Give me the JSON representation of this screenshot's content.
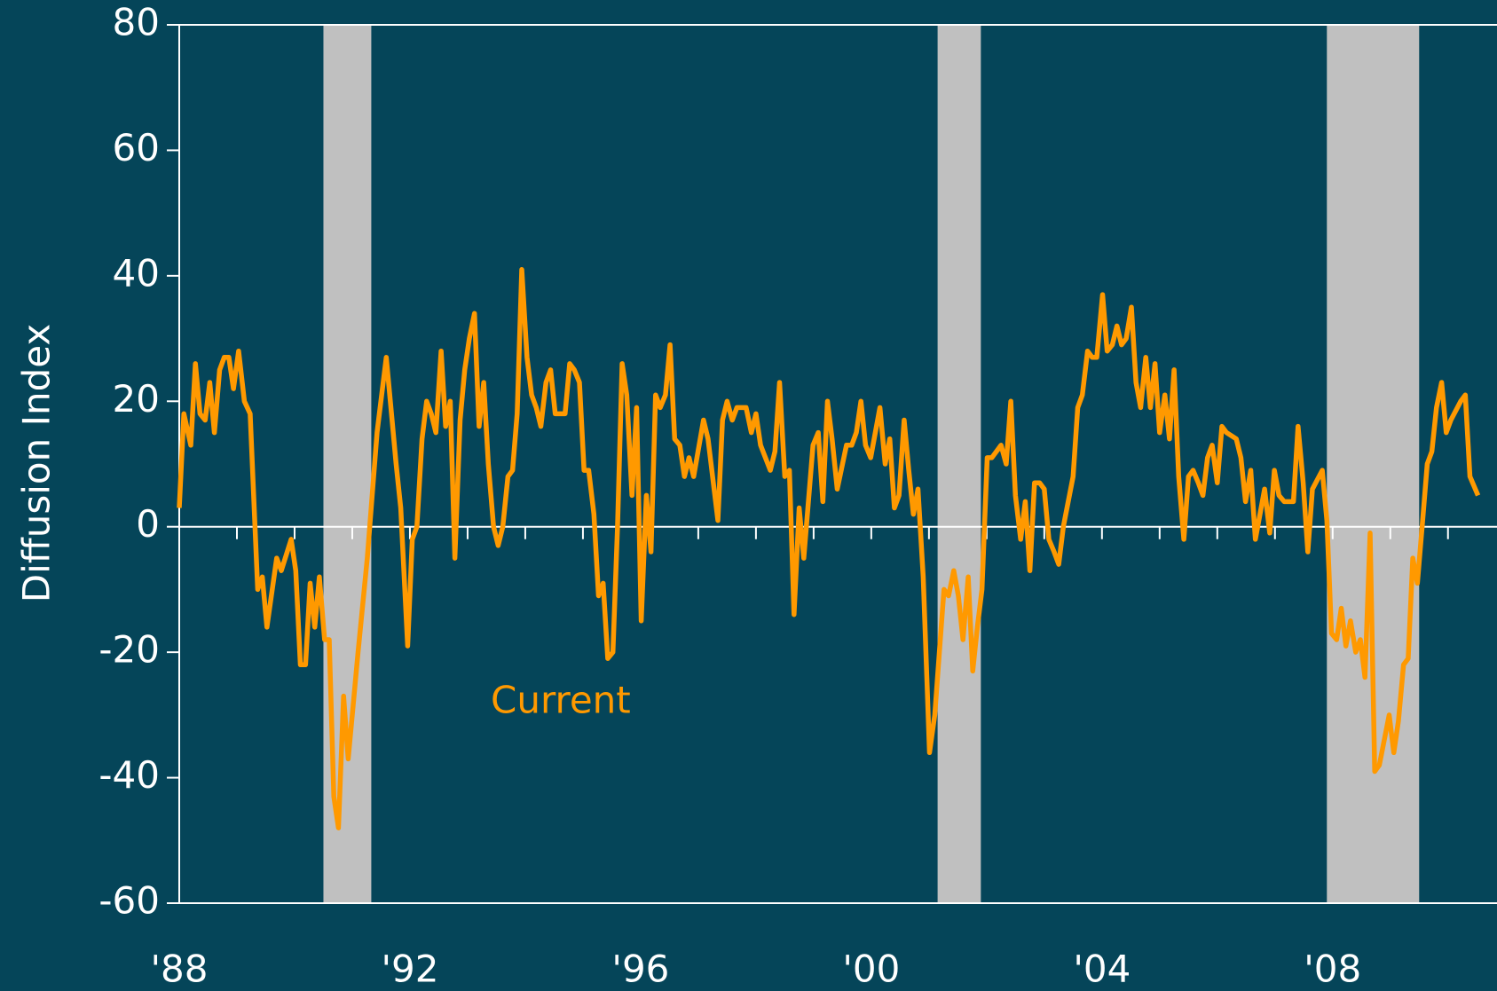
{
  "chart_data": {
    "type": "line",
    "y_label": "Diffusion Index",
    "annotation": "Current",
    "xlim": [
      1988,
      2010.85
    ],
    "ylim": [
      -60,
      80
    ],
    "yticks": [
      -60,
      -40,
      -20,
      0,
      20,
      40,
      60,
      80
    ],
    "xticks": [
      {
        "value": 1988,
        "label": "'88"
      },
      {
        "value": 1992,
        "label": "'92"
      },
      {
        "value": 1996,
        "label": "'96"
      },
      {
        "value": 2000,
        "label": "'00"
      },
      {
        "value": 2004,
        "label": "'04"
      },
      {
        "value": 2008,
        "label": "'08"
      }
    ],
    "xminorticks": [
      1989,
      1990,
      1991,
      1993,
      1994,
      1995,
      1997,
      1998,
      1999,
      2001,
      2002,
      2003,
      2005,
      2006,
      2007,
      2009,
      2010
    ],
    "shaded": [
      [
        1990.5,
        1991.33
      ],
      [
        2001.15,
        2001.9
      ],
      [
        2007.9,
        2009.5
      ]
    ],
    "shade_color": "#c0c0c0",
    "series": [
      {
        "name": "Current",
        "color": "#ff9900",
        "x": [
          1988.0,
          1988.08,
          1988.2,
          1988.28,
          1988.36,
          1988.45,
          1988.53,
          1988.61,
          1988.7,
          1988.78,
          1988.86,
          1988.94,
          1989.03,
          1989.13,
          1989.23,
          1989.36,
          1989.44,
          1989.52,
          1989.69,
          1989.77,
          1989.94,
          1990.02,
          1990.1,
          1990.19,
          1990.27,
          1990.35,
          1990.43,
          1990.52,
          1990.6,
          1990.68,
          1990.76,
          1990.85,
          1990.93,
          1991.1,
          1991.26,
          1991.43,
          1991.59,
          1991.76,
          1991.84,
          1991.96,
          1992.04,
          1992.12,
          1992.21,
          1992.29,
          1992.37,
          1992.45,
          1992.54,
          1992.62,
          1992.7,
          1992.78,
          1992.87,
          1992.95,
          1993.03,
          1993.12,
          1993.2,
          1993.28,
          1993.36,
          1993.45,
          1993.53,
          1993.61,
          1993.7,
          1993.78,
          1993.86,
          1993.94,
          1994.03,
          1994.11,
          1994.19,
          1994.27,
          1994.36,
          1994.44,
          1994.52,
          1994.69,
          1994.77,
          1994.85,
          1994.94,
          1995.02,
          1995.1,
          1995.19,
          1995.27,
          1995.35,
          1995.43,
          1995.52,
          1995.6,
          1995.68,
          1995.76,
          1995.85,
          1995.93,
          1996.01,
          1996.1,
          1996.18,
          1996.26,
          1996.34,
          1996.43,
          1996.51,
          1996.59,
          1996.68,
          1996.76,
          1996.84,
          1996.92,
          1997.09,
          1997.17,
          1997.34,
          1997.42,
          1997.5,
          1997.59,
          1997.67,
          1997.83,
          1997.92,
          1998.0,
          1998.08,
          1998.25,
          1998.33,
          1998.41,
          1998.5,
          1998.58,
          1998.66,
          1998.75,
          1998.83,
          1998.99,
          1999.08,
          1999.16,
          1999.24,
          1999.32,
          1999.41,
          1999.57,
          1999.66,
          1999.74,
          1999.82,
          1999.9,
          1999.99,
          2000.15,
          2000.24,
          2000.32,
          2000.4,
          2000.48,
          2000.57,
          2000.65,
          2000.73,
          2000.81,
          2000.9,
          2001.01,
          2001.1,
          2001.18,
          2001.26,
          2001.34,
          2001.43,
          2001.51,
          2001.59,
          2001.68,
          2001.76,
          2001.84,
          2001.92,
          2002.01,
          2002.09,
          2002.17,
          2002.25,
          2002.34,
          2002.42,
          2002.5,
          2002.59,
          2002.67,
          2002.75,
          2002.83,
          2002.92,
          2003.0,
          2003.08,
          2003.17,
          2003.25,
          2003.33,
          2003.5,
          2003.58,
          2003.66,
          2003.75,
          2003.83,
          2003.91,
          2004.01,
          2004.09,
          2004.18,
          2004.26,
          2004.34,
          2004.42,
          2004.51,
          2004.59,
          2004.67,
          2004.76,
          2004.84,
          2004.92,
          2005.0,
          2005.09,
          2005.17,
          2005.25,
          2005.33,
          2005.42,
          2005.5,
          2005.58,
          2005.67,
          2005.75,
          2005.83,
          2005.91,
          2006.0,
          2006.08,
          2006.16,
          2006.33,
          2006.41,
          2006.49,
          2006.58,
          2006.66,
          2006.74,
          2006.82,
          2006.91,
          2006.99,
          2007.07,
          2007.16,
          2007.32,
          2007.4,
          2007.49,
          2007.57,
          2007.65,
          2007.82,
          2007.9,
          2007.98,
          2008.07,
          2008.15,
          2008.23,
          2008.31,
          2008.4,
          2008.48,
          2008.56,
          2008.65,
          2008.73,
          2008.81,
          2008.98,
          2009.06,
          2009.14,
          2009.23,
          2009.31,
          2009.39,
          2009.47,
          2009.56,
          2009.64,
          2009.72,
          2009.8,
          2009.89,
          2009.97,
          2010.05,
          2010.22,
          2010.3,
          2010.38,
          2010.52
        ],
        "values": [
          3,
          18,
          13,
          26,
          18,
          17,
          23,
          15,
          25,
          27,
          27,
          22,
          28,
          20,
          18,
          -10,
          -8,
          -16,
          -5,
          -7,
          -2,
          -7,
          -22,
          -22,
          -9,
          -16,
          -8,
          -18,
          -18,
          -43,
          -48,
          -27,
          -37,
          -20,
          -5,
          15,
          27,
          10,
          3,
          -19,
          -2,
          0,
          14,
          20,
          18,
          15,
          28,
          16,
          20,
          -5,
          17,
          25,
          30,
          34,
          16,
          23,
          10,
          0,
          -3,
          0,
          8,
          9,
          18,
          41,
          27,
          21,
          19,
          16,
          23,
          25,
          18,
          18,
          26,
          25,
          23,
          9,
          9,
          2,
          -11,
          -9,
          -21,
          -20,
          0,
          26,
          21,
          5,
          19,
          -15,
          5,
          -4,
          21,
          19,
          21,
          29,
          14,
          13,
          8,
          11,
          8,
          17,
          14,
          1,
          17,
          20,
          17,
          19,
          19,
          15,
          18,
          13,
          9,
          12,
          23,
          8,
          9,
          -14,
          3,
          -5,
          13,
          15,
          4,
          20,
          14,
          6,
          13,
          13,
          15,
          20,
          13,
          11,
          19,
          10,
          14,
          3,
          5,
          17,
          9,
          2,
          6,
          -8,
          -36,
          -30,
          -20,
          -10,
          -11,
          -7,
          -11,
          -18,
          -8,
          -23,
          -16,
          -10,
          11,
          11,
          12,
          13,
          10,
          20,
          5,
          -2,
          4,
          -7,
          7,
          7,
          6,
          -2,
          -4,
          -6,
          0,
          8,
          19,
          21,
          28,
          27,
          27,
          37,
          28,
          29,
          32,
          29,
          30,
          35,
          23,
          19,
          27,
          19,
          26,
          15,
          21,
          14,
          25,
          8,
          -2,
          8,
          9,
          7,
          5,
          11,
          13,
          7,
          16,
          15,
          14,
          11,
          4,
          9,
          -2,
          2,
          6,
          -1,
          9,
          5,
          4,
          4,
          16,
          7,
          -4,
          6,
          9,
          1,
          -17,
          -18,
          -13,
          -19,
          -15,
          -20,
          -18,
          -24,
          -1,
          -39,
          -38,
          -30,
          -36,
          -31,
          -22,
          -21,
          -5,
          -9,
          1,
          10,
          12,
          19,
          23,
          15,
          17,
          20,
          21,
          8,
          5
        ]
      }
    ]
  }
}
